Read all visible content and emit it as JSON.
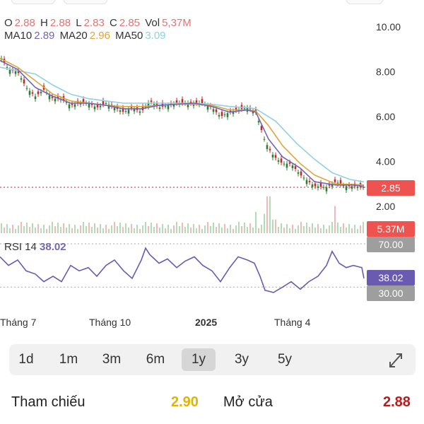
{
  "ohlc": {
    "o_label": "O",
    "o_value": "2.88",
    "h_label": "H",
    "h_value": "2.88",
    "l_label": "L",
    "l_value": "2.83",
    "c_label": "C",
    "c_value": "2.85",
    "vol_label": "Vol",
    "vol_value": "5,37M"
  },
  "ma": {
    "ma10_label": "MA10",
    "ma10_value": "2.89",
    "ma20_label": "MA20",
    "ma20_value": "2.96",
    "ma50_label": "MA50",
    "ma50_value": "3.09"
  },
  "colors": {
    "price_up": "#2e7d32",
    "price_down": "#c62828",
    "ma10": "#7565b5",
    "ma20": "#e0a53a",
    "ma50": "#8fd0e6",
    "rsi": "#6a5bb0",
    "last_price_badge": "#ef5350",
    "volume_badge": "#ef5350",
    "rsi_badge": "#6a5bb0",
    "level_badge": "#9e9e9e",
    "tham_chieu": "#e0b400",
    "mo_cua": "#b71c1c"
  },
  "price_axis": {
    "ticks": [
      "10.00",
      "8.00",
      "6.00",
      "4.00",
      "2.00"
    ]
  },
  "badges": {
    "last_price": "2.85",
    "volume": "5.37M",
    "rsi_70": "70.00",
    "rsi_value": "38.02",
    "rsi_30": "30.00"
  },
  "rsi": {
    "label": "RSI 14",
    "value": "38.02"
  },
  "x_axis": {
    "labels": [
      "Tháng 7",
      "Tháng 10",
      "2025",
      "Tháng 4"
    ]
  },
  "range_tabs": {
    "items": [
      "1d",
      "1m",
      "3m",
      "6m",
      "1y",
      "3y",
      "5y"
    ],
    "active": "1y"
  },
  "stats": {
    "tham_chieu_label": "Tham chiếu",
    "tham_chieu_value": "2.90",
    "mo_cua_label": "Mở cửa",
    "mo_cua_value": "2.88"
  },
  "chart_data": {
    "type": "line",
    "ylim": [
      1.5,
      10.5
    ],
    "price_ticks": [
      10,
      8,
      6,
      4,
      2
    ],
    "last_price": 2.85,
    "close_keypoints": [
      [
        0,
        8.7
      ],
      [
        12,
        8.1
      ],
      [
        25,
        8.0
      ],
      [
        37,
        7.3
      ],
      [
        50,
        6.9
      ],
      [
        62,
        7.2
      ],
      [
        75,
        6.8
      ],
      [
        87,
        6.8
      ],
      [
        100,
        6.5
      ],
      [
        112,
        6.6
      ],
      [
        125,
        6.6
      ],
      [
        137,
        6.4
      ],
      [
        150,
        6.6
      ],
      [
        162,
        6.4
      ],
      [
        175,
        6.2
      ],
      [
        187,
        6.4
      ],
      [
        200,
        6.2
      ],
      [
        212,
        6.7
      ],
      [
        225,
        6.4
      ],
      [
        237,
        6.5
      ],
      [
        250,
        6.6
      ],
      [
        262,
        6.6
      ],
      [
        275,
        6.6
      ],
      [
        287,
        6.6
      ],
      [
        300,
        6.4
      ],
      [
        312,
        6.0
      ],
      [
        325,
        6.2
      ],
      [
        337,
        6.3
      ],
      [
        350,
        6.4
      ],
      [
        362,
        6.2
      ],
      [
        368,
        5.6
      ],
      [
        374,
        5.0
      ],
      [
        380,
        4.6
      ],
      [
        386,
        4.3
      ],
      [
        392,
        4.1
      ],
      [
        400,
        3.9
      ],
      [
        412,
        3.9
      ],
      [
        425,
        3.4
      ],
      [
        437,
        3.1
      ],
      [
        445,
        2.9
      ],
      [
        462,
        2.85
      ],
      [
        475,
        3.1
      ],
      [
        488,
        2.9
      ],
      [
        500,
        2.9
      ],
      [
        512,
        2.85
      ]
    ],
    "ma10_keypoints": [
      [
        0,
        8.5
      ],
      [
        25,
        8.1
      ],
      [
        50,
        7.3
      ],
      [
        75,
        6.9
      ],
      [
        100,
        6.6
      ],
      [
        125,
        6.6
      ],
      [
        150,
        6.5
      ],
      [
        175,
        6.35
      ],
      [
        200,
        6.35
      ],
      [
        225,
        6.5
      ],
      [
        250,
        6.55
      ],
      [
        275,
        6.6
      ],
      [
        300,
        6.45
      ],
      [
        325,
        6.2
      ],
      [
        350,
        6.3
      ],
      [
        362,
        6.2
      ],
      [
        380,
        5.0
      ],
      [
        400,
        4.2
      ],
      [
        425,
        3.7
      ],
      [
        445,
        3.1
      ],
      [
        475,
        2.95
      ],
      [
        500,
        2.95
      ],
      [
        515,
        2.89
      ]
    ],
    "ma20_keypoints": [
      [
        0,
        8.6
      ],
      [
        25,
        8.2
      ],
      [
        50,
        7.6
      ],
      [
        75,
        7.0
      ],
      [
        100,
        6.7
      ],
      [
        125,
        6.6
      ],
      [
        150,
        6.5
      ],
      [
        175,
        6.45
      ],
      [
        200,
        6.45
      ],
      [
        225,
        6.5
      ],
      [
        250,
        6.55
      ],
      [
        275,
        6.55
      ],
      [
        300,
        6.5
      ],
      [
        325,
        6.3
      ],
      [
        350,
        6.3
      ],
      [
        362,
        6.25
      ],
      [
        380,
        5.6
      ],
      [
        400,
        4.7
      ],
      [
        425,
        3.9
      ],
      [
        445,
        3.4
      ],
      [
        475,
        3.0
      ],
      [
        500,
        2.97
      ],
      [
        515,
        2.96
      ]
    ],
    "ma50_keypoints": [
      [
        0,
        8.2
      ],
      [
        50,
        7.9
      ],
      [
        75,
        7.4
      ],
      [
        100,
        7.0
      ],
      [
        125,
        6.8
      ],
      [
        150,
        6.7
      ],
      [
        175,
        6.6
      ],
      [
        200,
        6.6
      ],
      [
        225,
        6.6
      ],
      [
        250,
        6.6
      ],
      [
        275,
        6.6
      ],
      [
        300,
        6.55
      ],
      [
        325,
        6.45
      ],
      [
        350,
        6.4
      ],
      [
        362,
        6.35
      ],
      [
        390,
        5.8
      ],
      [
        420,
        4.8
      ],
      [
        445,
        4.1
      ],
      [
        470,
        3.5
      ],
      [
        495,
        3.2
      ],
      [
        515,
        3.09
      ]
    ],
    "rsi_keypoints": [
      [
        0,
        58
      ],
      [
        12,
        50
      ],
      [
        25,
        55
      ],
      [
        37,
        45
      ],
      [
        50,
        42
      ],
      [
        62,
        35
      ],
      [
        75,
        40
      ],
      [
        87,
        35
      ],
      [
        100,
        50
      ],
      [
        112,
        45
      ],
      [
        125,
        48
      ],
      [
        137,
        40
      ],
      [
        150,
        50
      ],
      [
        162,
        55
      ],
      [
        175,
        45
      ],
      [
        187,
        38
      ],
      [
        200,
        55
      ],
      [
        206,
        66
      ],
      [
        212,
        60
      ],
      [
        225,
        52
      ],
      [
        237,
        56
      ],
      [
        250,
        48
      ],
      [
        262,
        54
      ],
      [
        275,
        58
      ],
      [
        287,
        50
      ],
      [
        300,
        45
      ],
      [
        312,
        35
      ],
      [
        325,
        48
      ],
      [
        337,
        58
      ],
      [
        350,
        55
      ],
      [
        360,
        52
      ],
      [
        368,
        40
      ],
      [
        375,
        27
      ],
      [
        387,
        25
      ],
      [
        400,
        30
      ],
      [
        412,
        35
      ],
      [
        425,
        28
      ],
      [
        437,
        35
      ],
      [
        450,
        40
      ],
      [
        462,
        50
      ],
      [
        470,
        63
      ],
      [
        480,
        52
      ],
      [
        490,
        48
      ],
      [
        500,
        50
      ],
      [
        512,
        48
      ],
      [
        515,
        38.02
      ]
    ],
    "volume_spikes": [
      [
        362,
        0.55
      ],
      [
        373,
        0.5
      ],
      [
        380,
        0.95
      ],
      [
        388,
        0.35
      ],
      [
        475,
        0.7
      ]
    ]
  }
}
